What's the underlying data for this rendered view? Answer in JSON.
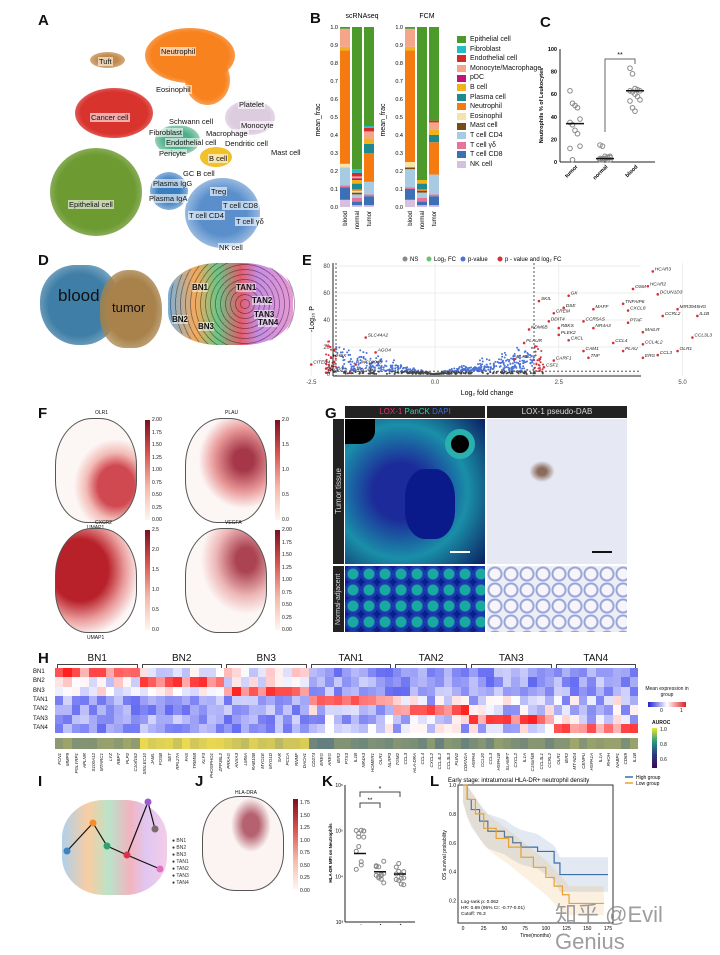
{
  "panels": {
    "A": "A",
    "B": "B",
    "C": "C",
    "D": "D",
    "E": "E",
    "F": "F",
    "G": "G",
    "H": "H",
    "I": "I",
    "J": "J",
    "K": "K",
    "L": "L"
  },
  "panelA": {
    "clusters": [
      {
        "name": "Neutrophil",
        "color": "#f7821e"
      },
      {
        "name": "Tuft",
        "color": "#b7783a"
      },
      {
        "name": "Eosinophil",
        "color": "#f7e08a"
      },
      {
        "name": "Cancer cell",
        "color": "#d9332d"
      },
      {
        "name": "Platelet",
        "color": "#d06080"
      },
      {
        "name": "Monocyte",
        "color": "#d9c6dd"
      },
      {
        "name": "Schwann cell",
        "color": "#9aa"
      },
      {
        "name": "Fibroblast",
        "color": "#29c3c8"
      },
      {
        "name": "Macrophage",
        "color": "#d9c6dd"
      },
      {
        "name": "Endothelial cell",
        "color": "#5aa34a"
      },
      {
        "name": "Dendritic cell",
        "color": "#c9b7d6"
      },
      {
        "name": "Pericyte",
        "color": "#c8e07a"
      },
      {
        "name": "B cell",
        "color": "#f2c02a"
      },
      {
        "name": "Mast cell",
        "color": "#8a5a20"
      },
      {
        "name": "GC B cell",
        "color": "#f2c02a"
      },
      {
        "name": "Plasma IgG",
        "color": "#9ab8d8"
      },
      {
        "name": "Plasma IgA",
        "color": "#3a7ec0"
      },
      {
        "name": "Epithelial cell",
        "color": "#6e9a32"
      },
      {
        "name": "Treg",
        "color": "#3bb8c0"
      },
      {
        "name": "T cell CD8",
        "color": "#3f79bb"
      },
      {
        "name": "T cell CD4",
        "color": "#a9c7e6"
      },
      {
        "name": "T cell γδ",
        "color": "#4aa04a"
      },
      {
        "name": "NK cell",
        "color": "#7fa6d6"
      }
    ]
  },
  "panelB": {
    "ylabel": "mean_frac",
    "yticks": [
      "0.0",
      "0.1",
      "0.2",
      "0.3",
      "0.4",
      "0.5",
      "0.6",
      "0.7",
      "0.8",
      "0.9",
      "1.0"
    ],
    "categories": [
      "NK cell",
      "T cell CD8",
      "T cell γδ",
      "T cell CD4",
      "Mast cell",
      "Eosinophil",
      "Neutrophil",
      "Plasma cell",
      "B cell",
      "pDC",
      "Monocyte/Macrophage",
      "Endothelial cell",
      "Fibroblast",
      "Epithelial cell"
    ],
    "colors": [
      "#d6c0de",
      "#3b6fb6",
      "#e7739a",
      "#a6cbe3",
      "#7a4b12",
      "#f8e3a6",
      "#f57a10",
      "#1d8a90",
      "#f2b21c",
      "#c0147a",
      "#f4a58a",
      "#d42a2a",
      "#23bcc7",
      "#4b9a2a"
    ],
    "legend_order": [
      "Epithelial cell",
      "Fibroblast",
      "Endothelial cell",
      "Monocyte/Macrophage",
      "pDC",
      "B cell",
      "Plasma cell",
      "Neutrophil",
      "Eosinophil",
      "Mast cell",
      "T cell CD4",
      "T cell γδ",
      "T cell CD8",
      "NK cell"
    ],
    "groups": [
      {
        "title": "scRNAseq",
        "bars": [
          {
            "label": "blood",
            "values": [
              0.04,
              0.07,
              0.01,
              0.1,
              0,
              0.02,
              0.63,
              0,
              0.02,
              0,
              0.1,
              0,
              0,
              0.01
            ]
          },
          {
            "label": "normal",
            "values": [
              0.01,
              0.02,
              0.02,
              0.02,
              0.01,
              0.01,
              0.01,
              0.03,
              0.02,
              0.01,
              0.01,
              0.02,
              0.02,
              0.79
            ]
          },
          {
            "label": "tumor",
            "values": [
              0.01,
              0.05,
              0.01,
              0.07,
              0,
              0,
              0.16,
              0.05,
              0.03,
              0,
              0.04,
              0.02,
              0.01,
              0.55
            ]
          }
        ]
      },
      {
        "title": "FCM",
        "bars": [
          {
            "label": "blood",
            "values": [
              0.04,
              0.06,
              0.01,
              0.1,
              0.01,
              0.03,
              0.62,
              0,
              0.02,
              0,
              0.1,
              0,
              0,
              0.01
            ]
          },
          {
            "label": "normal",
            "values": [
              0.01,
              0.02,
              0.02,
              0.03,
              0.01,
              0,
              0.01,
              0.03,
              0.02,
              0,
              0,
              0,
              0,
              0.85
            ]
          },
          {
            "label": "tumor",
            "values": [
              0.01,
              0.05,
              0.01,
              0.11,
              0,
              0,
              0.18,
              0.04,
              0.03,
              0,
              0.04,
              0.01,
              0,
              0.52
            ]
          }
        ]
      }
    ]
  },
  "panelC": {
    "ylabel": "Neutrophils % of Leukocytes",
    "yticks": [
      "0",
      "20",
      "40",
      "60",
      "80",
      "100"
    ],
    "sig": "**",
    "groups": [
      {
        "label": "tumor",
        "points": [
          63,
          52,
          50,
          48,
          38,
          35,
          33,
          28,
          25,
          14,
          12,
          2
        ],
        "median": 34
      },
      {
        "label": "normal",
        "points": [
          15,
          14,
          5,
          4,
          4,
          3,
          3,
          3,
          2,
          2,
          2,
          2,
          3,
          4,
          5
        ],
        "median": 3
      },
      {
        "label": "blood",
        "points": [
          83,
          78,
          65,
          64,
          63,
          63,
          62,
          60,
          58,
          55,
          54,
          48,
          45
        ],
        "median": 63
      }
    ]
  },
  "panelD": {
    "left": "blood",
    "right": "tumor",
    "subclusters": [
      "BN1",
      "BN2",
      "BN3",
      "TAN1",
      "TAN2",
      "TAN3",
      "TAN4"
    ]
  },
  "panelE": {
    "legend": [
      {
        "label": "NS",
        "color": "#888"
      },
      {
        "label": "Log₂ FC",
        "color": "#6cbf6c"
      },
      {
        "label": "p-value",
        "color": "#4b73d9"
      },
      {
        "label": "p - value and log₂ FC",
        "color": "#d6303a"
      }
    ],
    "ylabel": "-Log₁₀ P",
    "xlabel": "Log₂ fold change",
    "xticks": [
      "-2.5",
      "0.0",
      "2.5",
      "5.0",
      "7.5"
    ],
    "yticks": [
      "0",
      "20",
      "40",
      "60",
      "80"
    ],
    "genes": [
      {
        "g": "HCAR3",
        "x": 4.4,
        "y": 76
      },
      {
        "g": "HCAR2",
        "x": 4.3,
        "y": 65
      },
      {
        "g": "OSM",
        "x": 4.0,
        "y": 63
      },
      {
        "g": "DCUN1D3",
        "x": 4.5,
        "y": 59
      },
      {
        "g": "GK",
        "x": 2.7,
        "y": 58
      },
      {
        "g": "SKIL",
        "x": 2.1,
        "y": 54
      },
      {
        "g": "TNFAIP6",
        "x": 3.8,
        "y": 52
      },
      {
        "g": "DSE",
        "x": 2.6,
        "y": 49
      },
      {
        "g": "MAFF",
        "x": 3.2,
        "y": 48
      },
      {
        "g": "CXCL8",
        "x": 3.9,
        "y": 47
      },
      {
        "g": "MIR3945HG",
        "x": 4.9,
        "y": 48
      },
      {
        "g": "CREM",
        "x": 2.4,
        "y": 45
      },
      {
        "g": "CCRL2",
        "x": 4.6,
        "y": 43
      },
      {
        "g": "IL1B",
        "x": 5.3,
        "y": 43
      },
      {
        "g": "DDIT4",
        "x": 2.3,
        "y": 39
      },
      {
        "g": "CCR5AS",
        "x": 3.0,
        "y": 39
      },
      {
        "g": "PTAF",
        "x": 3.9,
        "y": 38
      },
      {
        "g": "KDM6B",
        "x": 1.9,
        "y": 33
      },
      {
        "g": "RBKS",
        "x": 2.5,
        "y": 34
      },
      {
        "g": "NR4A3",
        "x": 3.2,
        "y": 34
      },
      {
        "g": "PLEK2",
        "x": 2.5,
        "y": 29
      },
      {
        "g": "MAILR",
        "x": 4.2,
        "y": 31
      },
      {
        "g": "IL1A",
        "x": 6.1,
        "y": 31
      },
      {
        "g": "CCL3L3",
        "x": 5.2,
        "y": 27
      },
      {
        "g": "PLAUR",
        "x": 1.8,
        "y": 23
      },
      {
        "g": "CXCL",
        "x": 2.7,
        "y": 25
      },
      {
        "g": "CCL4",
        "x": 3.6,
        "y": 23
      },
      {
        "g": "CCL4L2",
        "x": 4.2,
        "y": 22
      },
      {
        "g": "SLC44A2",
        "x": -1.4,
        "y": 27
      },
      {
        "g": "AGO4",
        "x": -1.2,
        "y": 16
      },
      {
        "g": "HHEX",
        "x": -2.1,
        "y": 12
      },
      {
        "g": "CAM1",
        "x": 3.0,
        "y": 17
      },
      {
        "g": "PLAU",
        "x": 3.8,
        "y": 17
      },
      {
        "g": "OLR1",
        "x": 4.9,
        "y": 17
      },
      {
        "g": "ERG",
        "x": 4.2,
        "y": 12
      },
      {
        "g": "CCL3",
        "x": 4.5,
        "y": 14
      },
      {
        "g": "TNF",
        "x": 3.1,
        "y": 12
      },
      {
        "g": "CARF1",
        "x": 2.4,
        "y": 10
      },
      {
        "g": "PLA2G",
        "x": 1.6,
        "y": 11
      },
      {
        "g": "CSF1",
        "x": 2.2,
        "y": 5
      },
      {
        "g": "CITED4",
        "x": -2.5,
        "y": 7
      },
      {
        "g": "LINC01940",
        "x": -1.6,
        "y": 7
      },
      {
        "g": "LIF",
        "x": -2.2,
        "y": 4
      },
      {
        "g": "RNASE2",
        "x": -2.2,
        "y": 1
      },
      {
        "g": "CEACAM8",
        "x": -1.7,
        "y": 1
      }
    ]
  },
  "panelF": {
    "plots": [
      {
        "gene": "OLR1",
        "ticks": [
          "2.00",
          "1.75",
          "1.50",
          "1.25",
          "1.00",
          "0.75",
          "0.50",
          "0.25",
          "0.00"
        ],
        "axis": "UMAP1"
      },
      {
        "gene": "PLAU",
        "ticks": [
          "2.0",
          "1.5",
          "1.0",
          "0.5",
          "0.0"
        ]
      },
      {
        "gene": "CXCR2",
        "ticks": [
          "2.5",
          "2.0",
          "1.5",
          "1.0",
          "0.5",
          "0.0"
        ],
        "axis": "UMAP1"
      },
      {
        "gene": "VEGFA",
        "ticks": [
          "2.00",
          "1.75",
          "1.50",
          "1.25",
          "1.00",
          "0.75",
          "0.50",
          "0.25",
          "0.00"
        ]
      }
    ]
  },
  "panelG": {
    "header1": [
      {
        "t": "LOX-1 ",
        "c": "#e0336a"
      },
      {
        "t": "PanCK ",
        "c": "#33d0b0"
      },
      {
        "t": "DAPI",
        "c": "#3a6ad8"
      }
    ],
    "header2": "LOX-1 pseudo-DAB",
    "rows": [
      "Tumor tissue",
      "Normal-adjacent tissue"
    ]
  },
  "panelH": {
    "groups": [
      "BN1",
      "BN2",
      "BN3",
      "TAN1",
      "TAN2",
      "TAN3",
      "TAN4"
    ],
    "rows": [
      "BN1",
      "BN2",
      "BN3",
      "TAN1",
      "TAN2",
      "TAN3",
      "TAN4"
    ],
    "legend_title": "Mean expression in group",
    "legend_ticks": [
      "0",
      "1"
    ],
    "auroc_title": "AUROC",
    "auroc_ticks": [
      "1.0",
      "0.8",
      "0.6"
    ],
    "genes": [
      [
        "FCN1",
        "MMP9",
        "PGLYRP1",
        "APLNR",
        "S100A12",
        "MTARC1",
        "LYZ",
        "RBP7",
        "PLP2",
        "C1orf162"
      ],
      [
        "SIGLEC10",
        "JAML",
        "FOSB",
        "SET",
        "RPL27A",
        "FAS",
        "TRIM58",
        "KLF3",
        "PHOSPHO1",
        "ZFP36L2"
      ],
      [
        "PRKAG",
        "ANXA3",
        "LMNA",
        "RAB10B",
        "MYO1E",
        "MYO1D",
        "SAR",
        "PCCA",
        "RNMF",
        "DACH1"
      ],
      [
        "CD274",
        "EREG",
        "AREG",
        "IER2",
        "PTX3",
        "IL1B",
        "NR4A3",
        "HOMER1",
        "OLR1",
        "NLRP3"
      ],
      [
        "TGM2",
        "CCL3",
        "HLA-DRA",
        "CCL4",
        "CXCL2",
        "CCL4L2",
        "CCL3L3",
        "PLIN2",
        "CDKN1A"
      ],
      [
        "HSPA6",
        "CCL20",
        "CCL3",
        "HSPA1B",
        "SLAMF7",
        "CXCL2",
        "IL1A",
        "C15orf48",
        "CCL3L1",
        "CCRL2"
      ],
      [
        "OLR1",
        "IER2",
        "MT-ND4",
        "CENPU",
        "HSPA1A",
        "IL1A",
        "RHOH",
        "NABP1",
        "CD69",
        "IL1B"
      ]
    ],
    "auroc": [
      0.78,
      0.95,
      0.92,
      0.72,
      0.74,
      0.75,
      0.78
    ]
  },
  "panelI": {
    "legend": [
      {
        "l": "BN1",
        "c": "#3b84c0"
      },
      {
        "l": "BN2",
        "c": "#f58b2a"
      },
      {
        "l": "BN3",
        "c": "#2fa070"
      },
      {
        "l": "TAN1",
        "c": "#d9334a"
      },
      {
        "l": "TAN2",
        "c": "#9a5ad0"
      },
      {
        "l": "TAN3",
        "c": "#7a6a6a"
      },
      {
        "l": "TAN4",
        "c": "#e070c0"
      }
    ]
  },
  "panelJ": {
    "gene": "HLA-DRA",
    "ticks": [
      "1.75",
      "1.50",
      "1.25",
      "1.00",
      "0.75",
      "0.50",
      "0.25",
      "0.00"
    ]
  },
  "panelK": {
    "ylabel": "HLA-DR MFI on Neutrophils",
    "yticks": [
      "10⁶",
      "10⁵",
      "10⁴",
      "10³"
    ],
    "groups": [
      "tumor",
      "normal",
      "blood"
    ],
    "sig1": "*",
    "sig2": "**"
  },
  "panelL": {
    "title": "Early stage: intratumoral HLA-DR+ neutrophil density",
    "legend": [
      {
        "l": "High group",
        "c": "#3a6ea8"
      },
      {
        "l": "Low group",
        "c": "#e8a030"
      }
    ],
    "ylabel": "OS survival probability",
    "xlabel": "Time(months)",
    "xticks": [
      "0",
      "25",
      "50",
      "75",
      "100",
      "125",
      "150",
      "175"
    ],
    "yticks": [
      "1.0",
      "0.8",
      "0.6",
      "0.4",
      "0.2"
    ],
    "stats": [
      "Log-rank p: 0.062",
      "HR: 0.69 (95% CI: -0.77-0.01)",
      "Cutoff: 76.3"
    ],
    "high": [
      [
        0,
        1
      ],
      [
        5,
        0.9
      ],
      [
        10,
        0.83
      ],
      [
        20,
        0.75
      ],
      [
        30,
        0.68
      ],
      [
        50,
        0.64
      ],
      [
        60,
        0.6
      ],
      [
        70,
        0.57
      ],
      [
        90,
        0.54
      ],
      [
        110,
        0.46
      ],
      [
        117,
        0.38
      ],
      [
        175,
        0.38
      ]
    ],
    "low": [
      [
        0,
        1
      ],
      [
        5,
        0.9
      ],
      [
        15,
        0.8
      ],
      [
        25,
        0.7
      ],
      [
        40,
        0.63
      ],
      [
        55,
        0.57
      ],
      [
        70,
        0.5
      ],
      [
        85,
        0.43
      ],
      [
        100,
        0.36
      ],
      [
        110,
        0.3
      ],
      [
        120,
        0.24
      ],
      [
        128,
        0.18
      ],
      [
        170,
        0.18
      ]
    ]
  },
  "watermark": "知乎 @Evil Genius"
}
